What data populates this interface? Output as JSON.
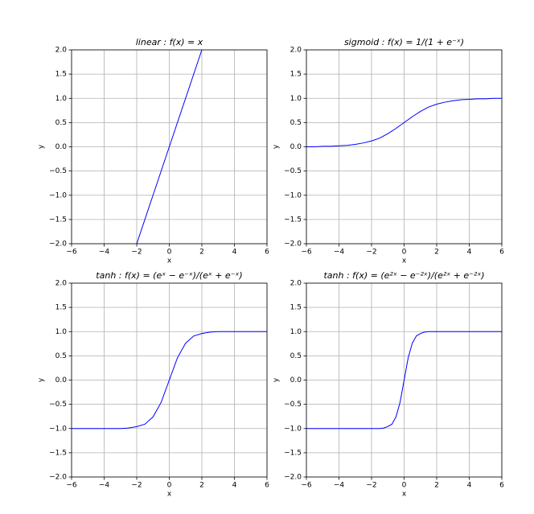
{
  "chart_data": [
    {
      "type": "line",
      "title": "linear : f(x) = x",
      "x_label": "x",
      "y_label": "y",
      "xlim": [
        -6,
        6
      ],
      "ylim": [
        -2,
        2
      ],
      "grid": true,
      "xticks": [
        {
          "value": -6,
          "label": "−6"
        },
        {
          "value": -4,
          "label": "−4"
        },
        {
          "value": -2,
          "label": "−2"
        },
        0,
        2,
        4,
        6
      ],
      "yticks": [
        {
          "value": -2,
          "label": "−2.0"
        },
        {
          "value": -1.5,
          "label": "−1.5"
        },
        {
          "value": -1,
          "label": "−1.0"
        },
        {
          "value": -0.5,
          "label": "−0.5"
        },
        {
          "value": 0,
          "label": "0.0"
        },
        {
          "value": 0.5,
          "label": "0.5"
        },
        {
          "value": 1,
          "label": "1.0"
        },
        {
          "value": 1.5,
          "label": "1.5"
        },
        {
          "value": 2,
          "label": "2.0"
        }
      ],
      "x": [
        -2,
        -1,
        0,
        1,
        2
      ],
      "series": [
        {
          "color": "#0000ff",
          "values": [
            -2,
            -1,
            0,
            1,
            2
          ]
        }
      ]
    },
    {
      "type": "line",
      "title": "sigmoid : f(x) = 1/(1 + e⁻ˣ)",
      "x_label": "x",
      "y_label": "y",
      "xlim": [
        -6,
        6
      ],
      "ylim": [
        -2,
        2
      ],
      "grid": true,
      "xticks": [
        {
          "value": -6,
          "label": "−6"
        },
        {
          "value": -4,
          "label": "−4"
        },
        {
          "value": -2,
          "label": "−2"
        },
        0,
        2,
        4,
        6
      ],
      "yticks": [
        {
          "value": -2,
          "label": "−2.0"
        },
        {
          "value": -1.5,
          "label": "−1.5"
        },
        {
          "value": -1,
          "label": "−1.0"
        },
        {
          "value": -0.5,
          "label": "−0.5"
        },
        {
          "value": 0,
          "label": "0.0"
        },
        {
          "value": 0.5,
          "label": "0.5"
        },
        {
          "value": 1,
          "label": "1.0"
        },
        {
          "value": 1.5,
          "label": "1.5"
        },
        {
          "value": 2,
          "label": "2.0"
        }
      ],
      "x": [
        -6,
        -5.5,
        -5,
        -4.5,
        -4,
        -3.5,
        -3,
        -2.5,
        -2,
        -1.5,
        -1,
        -0.5,
        0,
        0.5,
        1,
        1.5,
        2,
        2.5,
        3,
        3.5,
        4,
        4.5,
        5,
        5.5,
        6
      ],
      "series": [
        {
          "color": "#0000ff",
          "values": [
            0,
            0,
            0.01,
            0.01,
            0.02,
            0.03,
            0.05,
            0.08,
            0.12,
            0.18,
            0.27,
            0.38,
            0.5,
            0.62,
            0.73,
            0.82,
            0.88,
            0.92,
            0.95,
            0.97,
            0.98,
            0.99,
            0.99,
            1,
            1
          ]
        }
      ]
    },
    {
      "type": "line",
      "title": "tanh : f(x) = (eˣ − e⁻ˣ)/(eˣ + e⁻ˣ)",
      "x_label": "x",
      "y_label": "y",
      "xlim": [
        -6,
        6
      ],
      "ylim": [
        -2,
        2
      ],
      "grid": true,
      "xticks": [
        {
          "value": -6,
          "label": "−6"
        },
        {
          "value": -4,
          "label": "−4"
        },
        {
          "value": -2,
          "label": "−2"
        },
        0,
        2,
        4,
        6
      ],
      "yticks": [
        {
          "value": -2,
          "label": "−2.0"
        },
        {
          "value": -1.5,
          "label": "−1.5"
        },
        {
          "value": -1,
          "label": "−1.0"
        },
        {
          "value": -0.5,
          "label": "−0.5"
        },
        {
          "value": 0,
          "label": "0.0"
        },
        {
          "value": 0.5,
          "label": "0.5"
        },
        {
          "value": 1,
          "label": "1.0"
        },
        {
          "value": 1.5,
          "label": "1.5"
        },
        {
          "value": 2,
          "label": "2.0"
        }
      ],
      "x": [
        -6,
        -5,
        -4,
        -3.5,
        -3,
        -2.5,
        -2,
        -1.5,
        -1,
        -0.5,
        0,
        0.5,
        1,
        1.5,
        2,
        2.5,
        3,
        3.5,
        4,
        5,
        6
      ],
      "series": [
        {
          "color": "#0000ff",
          "values": [
            -1,
            -1,
            -1,
            -1,
            -1,
            -0.99,
            -0.96,
            -0.91,
            -0.76,
            -0.46,
            0,
            0.46,
            0.76,
            0.91,
            0.96,
            0.99,
            1,
            1,
            1,
            1,
            1
          ]
        }
      ]
    },
    {
      "type": "line",
      "title": "tanh : f(x) = (e²ˣ − e⁻²ˣ)/(e²ˣ + e⁻²ˣ)",
      "x_label": "x",
      "y_label": "y",
      "xlim": [
        -6,
        6
      ],
      "ylim": [
        -2,
        2
      ],
      "grid": true,
      "xticks": [
        {
          "value": -6,
          "label": "−6"
        },
        {
          "value": -4,
          "label": "−4"
        },
        {
          "value": -2,
          "label": "−2"
        },
        0,
        2,
        4,
        6
      ],
      "yticks": [
        {
          "value": -2,
          "label": "−2.0"
        },
        {
          "value": -1.5,
          "label": "−1.5"
        },
        {
          "value": -1,
          "label": "−1.0"
        },
        {
          "value": -0.5,
          "label": "−0.5"
        },
        {
          "value": 0,
          "label": "0.0"
        },
        {
          "value": 0.5,
          "label": "0.5"
        },
        {
          "value": 1,
          "label": "1.0"
        },
        {
          "value": 1.5,
          "label": "1.5"
        },
        {
          "value": 2,
          "label": "2.0"
        }
      ],
      "x": [
        -6,
        -4,
        -2,
        -1.75,
        -1.5,
        -1.25,
        -1,
        -0.75,
        -0.5,
        -0.25,
        0,
        0.25,
        0.5,
        0.75,
        1,
        1.25,
        1.5,
        1.75,
        2,
        4,
        6
      ],
      "series": [
        {
          "color": "#0000ff",
          "values": [
            -1,
            -1,
            -1,
            -1,
            -1,
            -0.99,
            -0.96,
            -0.91,
            -0.76,
            -0.46,
            0,
            0.46,
            0.76,
            0.91,
            0.96,
            0.99,
            1,
            1,
            1,
            1,
            1
          ]
        }
      ]
    }
  ]
}
